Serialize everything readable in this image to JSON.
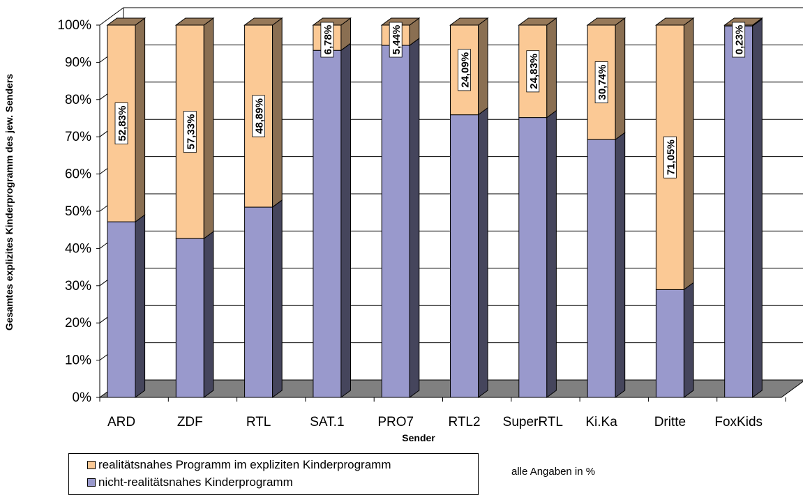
{
  "chart_data": {
    "type": "bar",
    "stacked": true,
    "three_d": true,
    "categories": [
      "ARD",
      "ZDF",
      "RTL",
      "SAT.1",
      "PRO7",
      "RTL2",
      "SuperRTL",
      "Ki.Ka",
      "Dritte",
      "FoxKids"
    ],
    "series": [
      {
        "name": "nicht-realitätsnahes Kinderprogramm",
        "color": "#9999cc",
        "values": [
          47.17,
          42.67,
          51.11,
          93.22,
          94.56,
          75.91,
          75.17,
          69.26,
          28.95,
          99.77
        ]
      },
      {
        "name": "realitätsnahes Programm im expliziten Kinderprogramm",
        "color": "#fbc995",
        "values": [
          52.83,
          57.33,
          48.89,
          6.78,
          5.44,
          24.09,
          24.83,
          30.74,
          71.05,
          0.23
        ],
        "data_labels": [
          "52,83%",
          "57,33%",
          "48,89%",
          "6,78%",
          "5,44%",
          "24,09%",
          "24,83%",
          "30,74%",
          "71,05%",
          "0,23%"
        ]
      }
    ],
    "ylim": [
      0,
      100
    ],
    "yticks": [
      "0%",
      "10%",
      "20%",
      "30%",
      "40%",
      "50%",
      "60%",
      "70%",
      "80%",
      "90%",
      "100%"
    ],
    "xlabel": "Sender",
    "ylabel": "Gesamtes explizites Kinderprogramm des jew. Senders",
    "grid": true,
    "legend_position": "bottom-left",
    "floor_color": "#808080"
  },
  "note": "alle Angaben in %"
}
